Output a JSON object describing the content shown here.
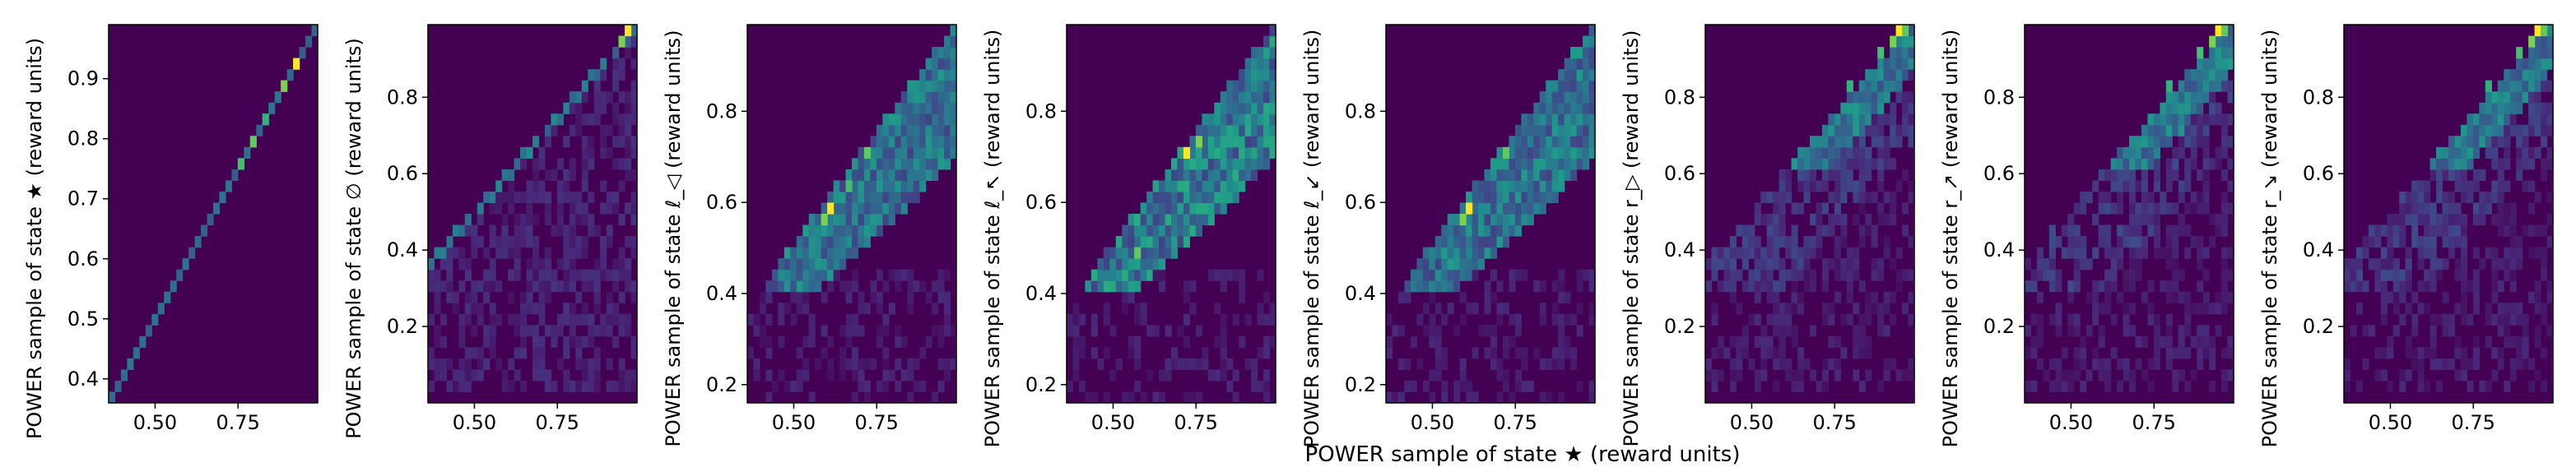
{
  "figure": {
    "shared_xlabel": "POWER sample of state ★ (reward units)"
  },
  "colormap": {
    "name": "viridis",
    "stops": [
      "#440154",
      "#482878",
      "#3e4989",
      "#31688e",
      "#26828e",
      "#1f9e89",
      "#35b779",
      "#6ece58",
      "#b5de2b",
      "#fde725"
    ]
  },
  "chart_data": [
    {
      "type": "heatmap",
      "xlabel": "",
      "ylabel": "POWER sample of state ★ (reward units)",
      "xlim": [
        0.36,
        0.99
      ],
      "ylim": [
        0.36,
        0.99
      ],
      "xticks": [
        "0.50",
        "0.75"
      ],
      "xtick_values": [
        0.5,
        0.75
      ],
      "yticks": [
        "0.4",
        "0.5",
        "0.6",
        "0.7",
        "0.8",
        "0.9"
      ],
      "ytick_values": [
        0.4,
        0.5,
        0.6,
        0.7,
        0.8,
        0.9
      ],
      "pattern": "diagonal",
      "hot_spots": [
        [
          0.92,
          0.92
        ],
        [
          0.88,
          0.88
        ],
        [
          0.8,
          0.8
        ],
        [
          0.76,
          0.76
        ],
        [
          0.84,
          0.84
        ]
      ]
    },
    {
      "type": "heatmap",
      "xlabel": "",
      "ylabel": "POWER sample of state ∅ (reward units)",
      "xlim": [
        0.36,
        0.99
      ],
      "ylim": [
        0.0,
        0.99
      ],
      "xticks": [
        "0.50",
        "0.75"
      ],
      "xtick_values": [
        0.5,
        0.75
      ],
      "yticks": [
        "0.2",
        "0.4",
        "0.6",
        "0.8"
      ],
      "ytick_values": [
        0.2,
        0.4,
        0.6,
        0.8
      ],
      "pattern": "below-diagonal",
      "hot_spots": [
        [
          0.97,
          0.97
        ],
        [
          0.95,
          0.94
        ]
      ]
    },
    {
      "type": "heatmap",
      "xlabel": "",
      "ylabel": "POWER sample of state ℓ_◁ (reward units)",
      "xlim": [
        0.36,
        0.99
      ],
      "ylim": [
        0.16,
        0.99
      ],
      "xticks": [
        "0.50",
        "0.75"
      ],
      "xtick_values": [
        0.5,
        0.75
      ],
      "yticks": [
        "0.2",
        "0.4",
        "0.6",
        "0.8"
      ],
      "ytick_values": [
        0.2,
        0.4,
        0.6,
        0.8
      ],
      "pattern": "band",
      "hot_spots": [
        [
          0.61,
          0.59
        ],
        [
          0.6,
          0.57
        ],
        [
          0.73,
          0.72
        ],
        [
          0.66,
          0.64
        ]
      ]
    },
    {
      "type": "heatmap",
      "xlabel": "",
      "ylabel": "POWER sample of state ℓ_↖ (reward units)",
      "xlim": [
        0.36,
        0.99
      ],
      "ylim": [
        0.16,
        0.99
      ],
      "xticks": [
        "0.50",
        "0.75"
      ],
      "xtick_values": [
        0.5,
        0.75
      ],
      "yticks": [
        "0.2",
        "0.4",
        "0.6",
        "0.8"
      ],
      "ytick_values": [
        0.2,
        0.4,
        0.6,
        0.8
      ],
      "pattern": "band-wide",
      "hot_spots": [
        [
          0.73,
          0.71
        ],
        [
          0.75,
          0.74
        ],
        [
          0.57,
          0.5
        ]
      ]
    },
    {
      "type": "heatmap",
      "xlabel": "",
      "ylabel": "POWER sample of state ℓ_↙ (reward units)",
      "xlim": [
        0.36,
        0.99
      ],
      "ylim": [
        0.16,
        0.99
      ],
      "xticks": [
        "0.50",
        "0.75"
      ],
      "xtick_values": [
        0.5,
        0.75
      ],
      "yticks": [
        "0.2",
        "0.4",
        "0.6",
        "0.8"
      ],
      "ytick_values": [
        0.2,
        0.4,
        0.6,
        0.8
      ],
      "pattern": "band",
      "hot_spots": [
        [
          0.61,
          0.59
        ],
        [
          0.6,
          0.57
        ],
        [
          0.73,
          0.72
        ]
      ]
    },
    {
      "type": "heatmap",
      "xlabel": "",
      "ylabel": "POWER sample of state r_▷ (reward units)",
      "xlim": [
        0.36,
        0.99
      ],
      "ylim": [
        0.0,
        0.99
      ],
      "xticks": [
        "0.50",
        "0.75"
      ],
      "xtick_values": [
        0.5,
        0.75
      ],
      "yticks": [
        "0.2",
        "0.4",
        "0.6",
        "0.8"
      ],
      "ytick_values": [
        0.2,
        0.4,
        0.6,
        0.8
      ],
      "pattern": "top-cluster",
      "hot_spots": [
        [
          0.94,
          0.97
        ],
        [
          0.92,
          0.96
        ],
        [
          0.96,
          0.97
        ],
        [
          0.88,
          0.92
        ],
        [
          0.8,
          0.82
        ]
      ]
    },
    {
      "type": "heatmap",
      "xlabel": "",
      "ylabel": "POWER sample of state r_↗ (reward units)",
      "xlim": [
        0.36,
        0.99
      ],
      "ylim": [
        0.0,
        0.99
      ],
      "xticks": [
        "0.50",
        "0.75"
      ],
      "xtick_values": [
        0.5,
        0.75
      ],
      "yticks": [
        "0.2",
        "0.4",
        "0.6",
        "0.8"
      ],
      "ytick_values": [
        0.2,
        0.4,
        0.6,
        0.8
      ],
      "pattern": "top-cluster",
      "hot_spots": [
        [
          0.94,
          0.97
        ],
        [
          0.92,
          0.96
        ],
        [
          0.96,
          0.97
        ],
        [
          0.88,
          0.92
        ],
        [
          0.8,
          0.82
        ]
      ]
    },
    {
      "type": "heatmap",
      "xlabel": "",
      "ylabel": "POWER sample of state r_↘ (reward units)",
      "xlim": [
        0.36,
        0.99
      ],
      "ylim": [
        0.0,
        0.99
      ],
      "xticks": [
        "0.50",
        "0.75"
      ],
      "xtick_values": [
        0.5,
        0.75
      ],
      "yticks": [
        "0.2",
        "0.4",
        "0.6",
        "0.8"
      ],
      "ytick_values": [
        0.2,
        0.4,
        0.6,
        0.8
      ],
      "pattern": "top-cluster",
      "hot_spots": [
        [
          0.94,
          0.97
        ],
        [
          0.92,
          0.96
        ],
        [
          0.96,
          0.97
        ],
        [
          0.88,
          0.92
        ],
        [
          0.8,
          0.82
        ]
      ]
    }
  ]
}
